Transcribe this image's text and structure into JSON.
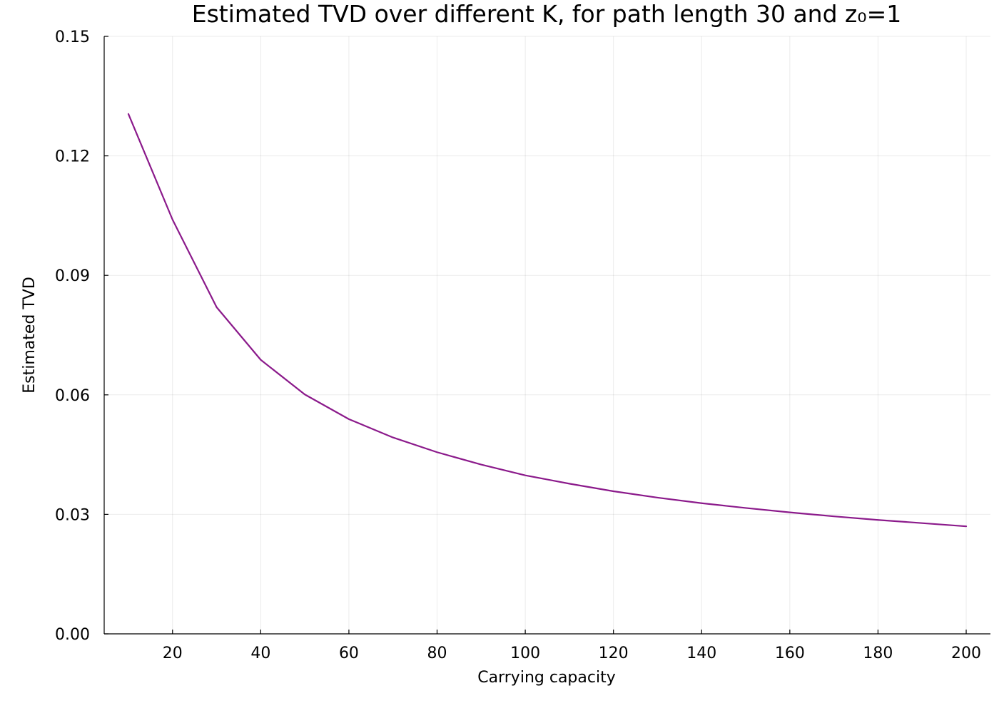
{
  "chart_data": {
    "type": "line",
    "title": "Estimated TVD over different K, for path length 30 and z₀=1",
    "xlabel": "Carrying capacity",
    "ylabel": "Estimated TVD",
    "xlim": [
      4.5,
      205.5
    ],
    "ylim": [
      0,
      0.15
    ],
    "xticks": [
      20,
      40,
      60,
      80,
      100,
      120,
      140,
      160,
      180,
      200
    ],
    "xtick_labels": [
      "20",
      "40",
      "60",
      "80",
      "100",
      "120",
      "140",
      "160",
      "180",
      "200"
    ],
    "yticks": [
      0,
      0.03,
      0.06,
      0.09,
      0.12,
      0.15
    ],
    "ytick_labels": [
      "0.00",
      "0.03",
      "0.06",
      "0.09",
      "0.12",
      "0.15"
    ],
    "grid": true,
    "legend": "none",
    "series": [
      {
        "color": "#8B1A8B",
        "x": [
          10,
          20,
          30,
          40,
          50,
          60,
          70,
          80,
          90,
          100,
          110,
          120,
          130,
          140,
          150,
          160,
          170,
          180,
          190,
          200
        ],
        "y": [
          0.1305,
          0.104,
          0.082,
          0.0688,
          0.0601,
          0.0539,
          0.0493,
          0.0456,
          0.0425,
          0.0398,
          0.0377,
          0.0358,
          0.0342,
          0.0328,
          0.0316,
          0.0305,
          0.0295,
          0.0286,
          0.0278,
          0.027
        ]
      }
    ]
  }
}
